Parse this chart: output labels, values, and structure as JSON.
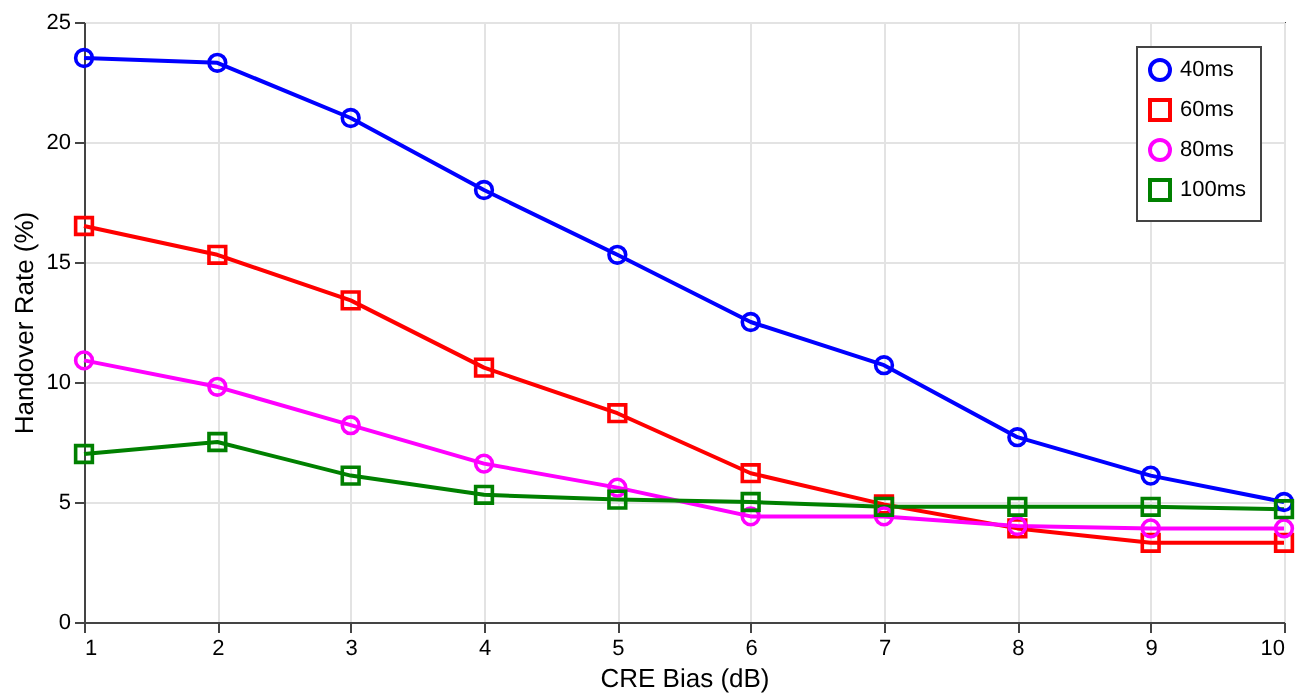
{
  "chart_data": {
    "type": "line",
    "xlabel": "CRE Bias (dB)",
    "ylabel": "Handover Rate (%)",
    "x": [
      1,
      2,
      3,
      4,
      5,
      6,
      7,
      8,
      9,
      10
    ],
    "series": [
      {
        "name": "40ms",
        "color": "#0000ff",
        "marker": "circle",
        "values": [
          23.5,
          23.3,
          21.0,
          18.0,
          15.3,
          12.5,
          10.7,
          7.7,
          6.1,
          5.0
        ]
      },
      {
        "name": "60ms",
        "color": "#ff0000",
        "marker": "square",
        "values": [
          16.5,
          15.3,
          13.4,
          10.6,
          8.7,
          6.2,
          4.9,
          3.9,
          3.3,
          3.3
        ]
      },
      {
        "name": "80ms",
        "color": "#ff00ff",
        "marker": "circle",
        "values": [
          10.9,
          9.8,
          8.2,
          6.6,
          5.6,
          4.4,
          4.4,
          4.0,
          3.9,
          3.9
        ]
      },
      {
        "name": "100ms",
        "color": "#008000",
        "marker": "square",
        "values": [
          7.0,
          7.5,
          6.1,
          5.3,
          5.1,
          5.0,
          4.8,
          4.8,
          4.8,
          4.7
        ]
      }
    ],
    "xlim": [
      1,
      10
    ],
    "xticks": [
      1,
      2,
      3,
      4,
      5,
      6,
      7,
      8,
      9,
      10
    ],
    "ylim": [
      0,
      25
    ],
    "yticks": [
      0,
      5,
      10,
      15,
      20,
      25
    ],
    "grid": true,
    "legend": "top right",
    "line_style": "solid"
  }
}
